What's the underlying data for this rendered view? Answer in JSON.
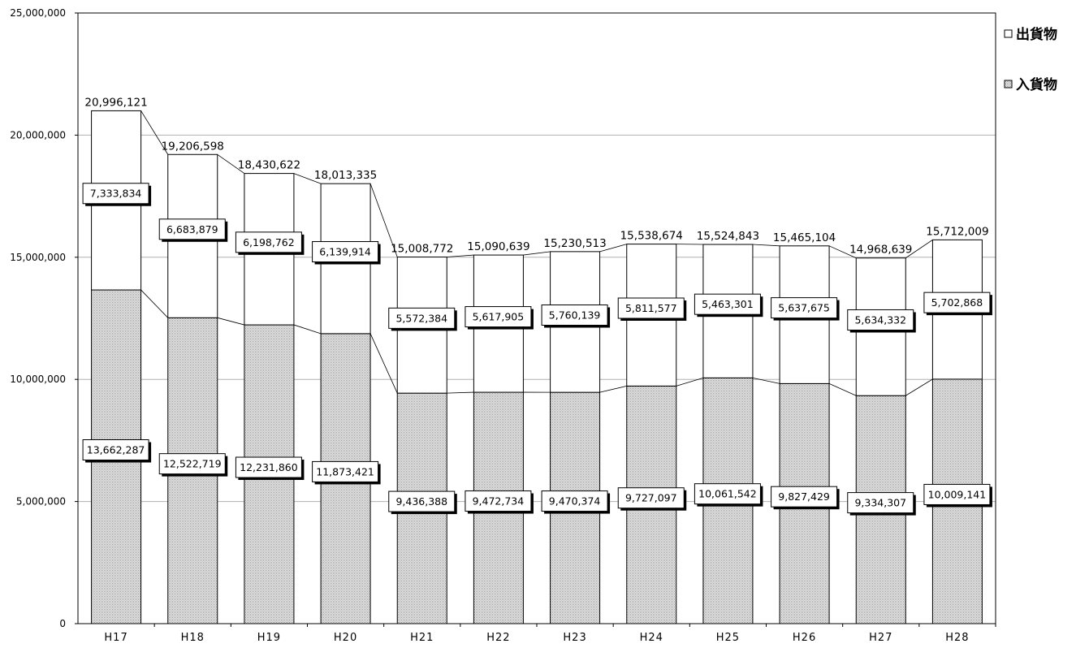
{
  "chart_data": {
    "type": "bar",
    "stacked": true,
    "categories": [
      "H17",
      "H18",
      "H19",
      "H20",
      "H21",
      "H22",
      "H23",
      "H24",
      "H25",
      "H26",
      "H27",
      "H28"
    ],
    "series": [
      {
        "name": "入貨物",
        "fill": "dotted",
        "values": [
          13662287,
          12522719,
          12231860,
          11873421,
          9436388,
          9472734,
          9470374,
          9727097,
          10061542,
          9827429,
          9334307,
          10009141
        ],
        "labels": [
          "13,662,287",
          "12,522,719",
          "12,231,860",
          "11,873,421",
          "9,436,388",
          "9,472,734",
          "9,470,374",
          "9,727,097",
          "10,061,542",
          "9,827,429",
          "9,334,307",
          "10,009,141"
        ]
      },
      {
        "name": "出貨物",
        "fill": "white",
        "values": [
          7333834,
          6683879,
          6198762,
          6139914,
          5572384,
          5617905,
          5760139,
          5811577,
          5463301,
          5637675,
          5634332,
          5702868
        ],
        "labels": [
          "7,333,834",
          "6,683,879",
          "6,198,762",
          "6,139,914",
          "5,572,384",
          "5,617,905",
          "5,760,139",
          "5,811,577",
          "5,463,301",
          "5,637,675",
          "5,634,332",
          "5,702,868"
        ]
      }
    ],
    "totals": [
      20996121,
      19206598,
      18430622,
      18013335,
      15008772,
      15090639,
      15230513,
      15538674,
      15524843,
      15465104,
      14968639,
      15712009
    ],
    "total_labels": [
      "20,996,121",
      "19,206,598",
      "18,430,622",
      "18,013,335",
      "15,008,772",
      "15,090,639",
      "15,230,513",
      "15,538,674",
      "15,524,843",
      "15,465,104",
      "14,968,639",
      "15,712,009"
    ],
    "yticks": [
      0,
      5000000,
      10000000,
      15000000,
      20000000,
      25000000
    ],
    "ytick_labels": [
      "0",
      "5,000,000",
      "10,000,000",
      "15,000,000",
      "20,000,000",
      "25,000,000"
    ],
    "ylim": [
      0,
      25000000
    ],
    "grid": true,
    "legend": [
      "出貨物",
      "入貨物"
    ],
    "legend_position": "right-top",
    "series_lines": true,
    "colors": {
      "bar_edge": "#000000",
      "grid": "#b0b0b0",
      "dot_fill": "#9a9a9a"
    }
  }
}
